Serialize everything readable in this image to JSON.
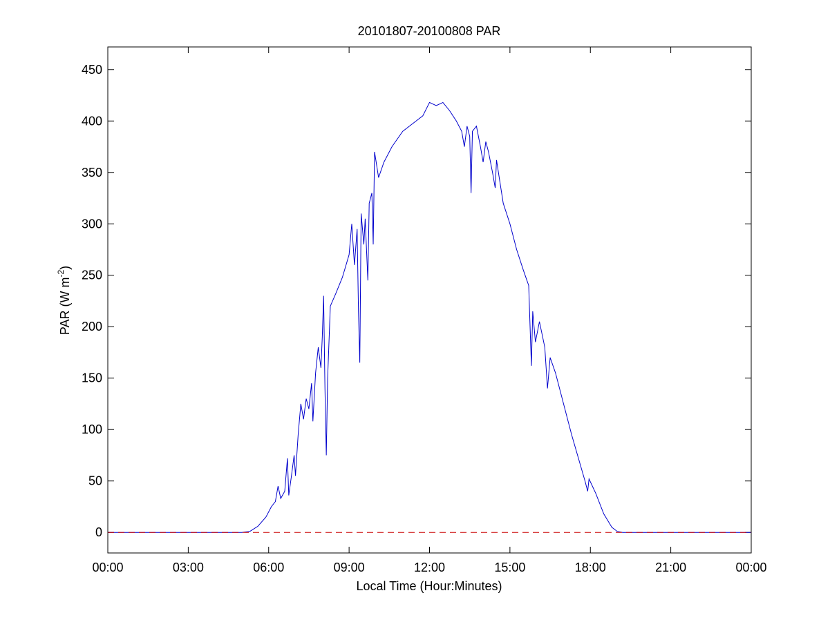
{
  "chart_data": {
    "type": "line",
    "title": "20101807-20100808 PAR",
    "xlabel": "Local Time (Hour:Minutes)",
    "ylabel": {
      "text": "PAR (W m",
      "superscript": "-2",
      "suffix": ")"
    },
    "xlim": [
      0,
      24
    ],
    "xticks": [
      {
        "value": 0,
        "label": "00:00"
      },
      {
        "value": 3,
        "label": "03:00"
      },
      {
        "value": 6,
        "label": "06:00"
      },
      {
        "value": 9,
        "label": "09:00"
      },
      {
        "value": 12,
        "label": "12:00"
      },
      {
        "value": 15,
        "label": "15:00"
      },
      {
        "value": 18,
        "label": "18:00"
      },
      {
        "value": 21,
        "label": "21:00"
      },
      {
        "value": 24,
        "label": "00:00"
      }
    ],
    "ylim": [
      -20,
      472
    ],
    "yticks": [
      0,
      50,
      100,
      150,
      200,
      250,
      300,
      350,
      400,
      450
    ],
    "grid": false,
    "reference_line": {
      "y": 0,
      "color": "#cc0000",
      "dashed": true
    },
    "series": [
      {
        "color": "#0000cc",
        "x": [
          0,
          5.0,
          5.3,
          5.6,
          5.9,
          6.1,
          6.25,
          6.35,
          6.45,
          6.6,
          6.7,
          6.75,
          6.85,
          6.95,
          7.0,
          7.1,
          7.2,
          7.3,
          7.4,
          7.5,
          7.6,
          7.65,
          7.75,
          7.85,
          7.95,
          8.0,
          8.05,
          8.1,
          8.15,
          8.2,
          8.3,
          8.5,
          8.75,
          9.0,
          9.1,
          9.2,
          9.3,
          9.35,
          9.4,
          9.45,
          9.55,
          9.6,
          9.7,
          9.75,
          9.85,
          9.9,
          9.95,
          10.1,
          10.3,
          10.6,
          11.0,
          11.5,
          11.75,
          12.0,
          12.25,
          12.5,
          12.75,
          13.0,
          13.2,
          13.3,
          13.4,
          13.5,
          13.55,
          13.6,
          13.75,
          13.9,
          14.0,
          14.1,
          14.2,
          14.35,
          14.45,
          14.5,
          14.6,
          14.75,
          15.0,
          15.25,
          15.5,
          15.7,
          15.8,
          15.85,
          15.95,
          16.1,
          16.3,
          16.4,
          16.5,
          16.7,
          17.0,
          17.3,
          17.6,
          17.8,
          17.9,
          17.95,
          18.2,
          18.5,
          18.8,
          19.0,
          19.2,
          24
        ],
        "values": [
          0,
          0,
          1,
          6,
          15,
          25,
          30,
          45,
          33,
          40,
          72,
          36,
          55,
          75,
          55,
          95,
          125,
          110,
          130,
          120,
          145,
          108,
          155,
          180,
          160,
          190,
          230,
          140,
          75,
          150,
          220,
          232,
          248,
          270,
          300,
          260,
          295,
          215,
          165,
          310,
          280,
          305,
          245,
          320,
          330,
          280,
          370,
          345,
          360,
          375,
          390,
          400,
          405,
          418,
          415,
          418,
          410,
          400,
          390,
          375,
          395,
          385,
          330,
          390,
          395,
          375,
          360,
          380,
          370,
          350,
          335,
          362,
          345,
          320,
          300,
          275,
          255,
          240,
          162,
          215,
          185,
          205,
          180,
          140,
          170,
          155,
          125,
          95,
          68,
          50,
          40,
          52,
          38,
          18,
          5,
          1,
          0,
          0
        ]
      }
    ]
  }
}
